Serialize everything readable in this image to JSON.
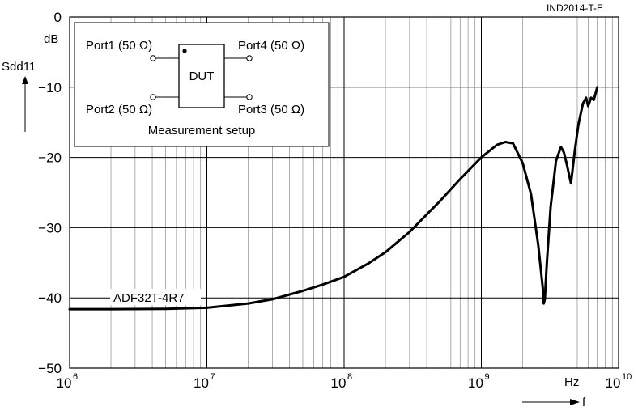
{
  "chart_data": {
    "type": "line",
    "code_label": "IND2014-T-E",
    "ylabel": "Sdd11",
    "yunit": "dB",
    "xlabel": "f",
    "xunit": "Hz",
    "xscale": "log",
    "xlim": [
      1000000,
      10000000000
    ],
    "ylim": [
      -50,
      0
    ],
    "grid": true,
    "xticks": [
      {
        "base": "10",
        "exp": "6"
      },
      {
        "base": "10",
        "exp": "7"
      },
      {
        "base": "10",
        "exp": "8"
      },
      {
        "base": "10",
        "exp": "9"
      },
      {
        "base": "10",
        "exp": "10"
      }
    ],
    "yticks": [
      "0",
      "-10",
      "-20",
      "-30",
      "-40",
      "-50"
    ],
    "inset": {
      "title": "Measurement setup",
      "dut": "DUT",
      "ports": [
        "Port1 (50 Ω)",
        "Port2 (50 Ω)",
        "Port3 (50 Ω)",
        "Port4 (50 Ω)"
      ]
    },
    "series": [
      {
        "name": "ADF32T-4R7",
        "x": [
          1000000,
          2000000,
          5000000,
          10000000,
          20000000,
          30000000,
          50000000,
          70000000,
          100000000,
          150000000,
          200000000,
          300000000,
          500000000,
          700000000,
          1000000000,
          1300000000,
          1500000000,
          1700000000,
          2000000000,
          2300000000,
          2600000000,
          2800000000,
          2850000000,
          2900000000,
          3000000000,
          3200000000,
          3500000000,
          3800000000,
          4000000000,
          4200000000,
          4500000000,
          4800000000,
          5100000000,
          5500000000,
          5800000000,
          6000000000,
          6300000000,
          6600000000,
          7000000000
        ],
        "y": [
          -41.6,
          -41.6,
          -41.55,
          -41.4,
          -40.8,
          -40.2,
          -39,
          -38.1,
          -37,
          -35.1,
          -33.5,
          -30.6,
          -26.2,
          -23.1,
          -20,
          -18.2,
          -17.8,
          -18,
          -20.8,
          -25.2,
          -32.5,
          -38.5,
          -40.8,
          -40.2,
          -35,
          -27,
          -20.5,
          -18.5,
          -19.3,
          -21,
          -23.7,
          -19,
          -15.3,
          -12.3,
          -11.5,
          -12.7,
          -11.5,
          -11.8,
          -10
        ]
      }
    ]
  }
}
